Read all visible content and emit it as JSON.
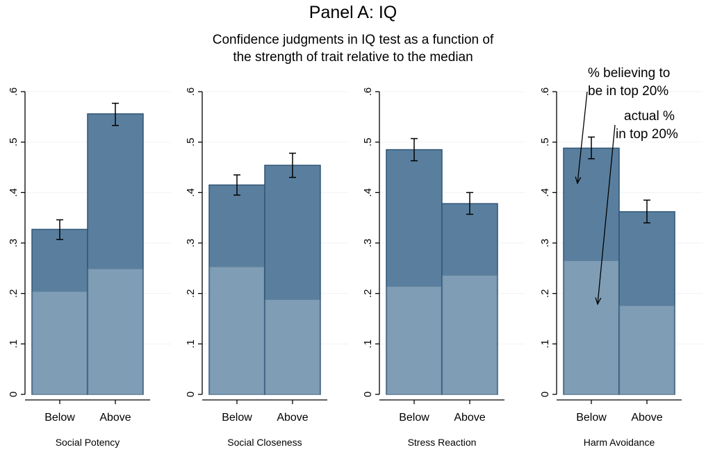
{
  "chart_data": {
    "type": "bar",
    "title": "Panel A: IQ",
    "subtitle": [
      "Confidence judgments in IQ test as a function of",
      "the strength of trait relative to the median"
    ],
    "ylim": [
      0,
      0.6
    ],
    "y_ticks": [
      0,
      0.1,
      0.2,
      0.3,
      0.4,
      0.5,
      0.6
    ],
    "y_tick_labels": [
      "0",
      ".1",
      ".2",
      ".3",
      ".4",
      ".5",
      ".6"
    ],
    "categories": [
      "Below",
      "Above"
    ],
    "colors": {
      "believing": "#5a7f9e",
      "believing_edge": "#2e5476",
      "actual": "#7f9db5",
      "actual_edge": "#5e7f98",
      "error_bar": "#000000"
    },
    "annotations": [
      {
        "id": "believing",
        "lines": [
          "% believing to",
          "be in top 20%"
        ]
      },
      {
        "id": "actual",
        "lines": [
          "actual %",
          "in top 20%"
        ]
      }
    ],
    "panels": [
      {
        "name": "Social Potency",
        "believing": [
          0.327,
          0.556
        ],
        "believing_ci": [
          [
            0.307,
            0.346
          ],
          [
            0.533,
            0.577
          ]
        ],
        "actual": [
          0.204,
          0.249
        ]
      },
      {
        "name": "Social Closeness",
        "believing": [
          0.415,
          0.454
        ],
        "believing_ci": [
          [
            0.395,
            0.435
          ],
          [
            0.43,
            0.478
          ]
        ],
        "actual": [
          0.253,
          0.188
        ]
      },
      {
        "name": "Stress Reaction",
        "believing": [
          0.485,
          0.378
        ],
        "believing_ci": [
          [
            0.463,
            0.507
          ],
          [
            0.357,
            0.4
          ]
        ],
        "actual": [
          0.214,
          0.236
        ]
      },
      {
        "name": "Harm Avoidance",
        "believing": [
          0.488,
          0.362
        ],
        "believing_ci": [
          [
            0.467,
            0.51
          ],
          [
            0.34,
            0.385
          ]
        ],
        "actual": [
          0.265,
          0.176
        ]
      }
    ]
  }
}
